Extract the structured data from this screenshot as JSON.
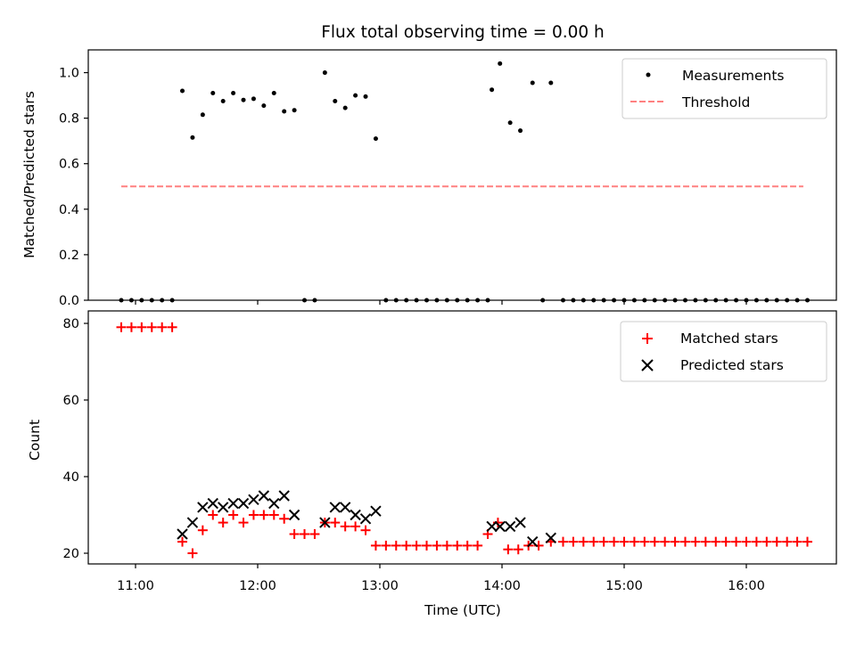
{
  "chart_data": [
    {
      "type": "scatter",
      "title": "Flux total observing time = 0.00 h",
      "xlabel": "",
      "ylabel": "Matched/Predicted stars",
      "xlim": [
        "10:35",
        "16:42"
      ],
      "ylim": [
        0,
        1.1
      ],
      "yticks": [
        0.0,
        0.2,
        0.4,
        0.6,
        0.8,
        1.0
      ],
      "ytick_labels": [
        "0.0",
        "0.2",
        "0.4",
        "0.6",
        "0.8",
        "1.0"
      ],
      "legend_position": "upper right",
      "grid": false,
      "series": [
        {
          "name": "Measurements",
          "marker": "dot",
          "color": "#000000",
          "points": [
            [
              "10:53",
              0
            ],
            [
              "10:58",
              0
            ],
            [
              "11:03",
              0
            ],
            [
              "11:08",
              0
            ],
            [
              "11:13",
              0
            ],
            [
              "11:18",
              0
            ],
            [
              "11:23",
              0.92
            ],
            [
              "11:28",
              0.715
            ],
            [
              "11:33",
              0.815
            ],
            [
              "11:38",
              0.91
            ],
            [
              "11:43",
              0.875
            ],
            [
              "11:48",
              0.91
            ],
            [
              "11:53",
              0.88
            ],
            [
              "11:58",
              0.885
            ],
            [
              "12:03",
              0.855
            ],
            [
              "12:08",
              0.91
            ],
            [
              "12:13",
              0.83
            ],
            [
              "12:18",
              0.835
            ],
            [
              "12:23",
              0
            ],
            [
              "12:28",
              0
            ],
            [
              "12:33",
              1.0
            ],
            [
              "12:38",
              0.875
            ],
            [
              "12:43",
              0.845
            ],
            [
              "12:48",
              0.9
            ],
            [
              "12:53",
              0.895
            ],
            [
              "12:58",
              0.71
            ],
            [
              "13:03",
              0
            ],
            [
              "13:08",
              0
            ],
            [
              "13:13",
              0
            ],
            [
              "13:18",
              0
            ],
            [
              "13:23",
              0
            ],
            [
              "13:28",
              0
            ],
            [
              "13:33",
              0
            ],
            [
              "13:38",
              0
            ],
            [
              "13:43",
              0
            ],
            [
              "13:48",
              0
            ],
            [
              "13:53",
              0
            ],
            [
              "13:55",
              0.925
            ],
            [
              "13:59",
              1.04
            ],
            [
              "14:04",
              0.78
            ],
            [
              "14:09",
              0.745
            ],
            [
              "14:15",
              0.955
            ],
            [
              "14:20",
              0
            ],
            [
              "14:24",
              0.955
            ],
            [
              "14:30",
              0
            ],
            [
              "14:35",
              0
            ],
            [
              "14:40",
              0
            ],
            [
              "14:45",
              0
            ],
            [
              "14:50",
              0
            ],
            [
              "14:55",
              0
            ],
            [
              "15:00",
              0
            ],
            [
              "15:05",
              0
            ],
            [
              "15:10",
              0
            ],
            [
              "15:15",
              0
            ],
            [
              "15:20",
              0
            ],
            [
              "15:25",
              0
            ],
            [
              "15:30",
              0
            ],
            [
              "15:35",
              0
            ],
            [
              "15:40",
              0
            ],
            [
              "15:45",
              0
            ],
            [
              "15:50",
              0
            ],
            [
              "15:55",
              0
            ],
            [
              "16:00",
              0
            ],
            [
              "16:05",
              0
            ],
            [
              "16:10",
              0
            ],
            [
              "16:15",
              0
            ],
            [
              "16:20",
              0
            ],
            [
              "16:25",
              0
            ],
            [
              "16:30",
              0
            ]
          ]
        },
        {
          "name": "Threshold",
          "style": "dashed-line",
          "color": "#ff8080",
          "points": [
            [
              "10:53",
              0.5
            ],
            [
              "16:28",
              0.5
            ]
          ]
        }
      ]
    },
    {
      "type": "scatter",
      "title": "",
      "xlabel": "Time (UTC)",
      "ylabel": "Count",
      "xlim": [
        "10:35",
        "16:42"
      ],
      "ylim": [
        16.5,
        82.5
      ],
      "yticks": [
        20,
        40,
        60,
        80
      ],
      "ytick_labels": [
        "20",
        "40",
        "60",
        "80"
      ],
      "xticks": [
        "11:00",
        "12:00",
        "13:00",
        "14:00",
        "15:00",
        "16:00"
      ],
      "xtick_labels": [
        "11:00",
        "12:00",
        "13:00",
        "14:00",
        "15:00",
        "16:00"
      ],
      "legend_position": "upper right",
      "grid": false,
      "series": [
        {
          "name": "Matched stars",
          "marker": "plus",
          "color": "#ff0000",
          "points": [
            [
              "10:53",
              79
            ],
            [
              "10:58",
              79
            ],
            [
              "11:03",
              79
            ],
            [
              "11:08",
              79
            ],
            [
              "11:13",
              79
            ],
            [
              "11:18",
              79
            ],
            [
              "11:23",
              23
            ],
            [
              "11:28",
              20
            ],
            [
              "11:33",
              26
            ],
            [
              "11:38",
              30
            ],
            [
              "11:43",
              28
            ],
            [
              "11:48",
              30
            ],
            [
              "11:53",
              28
            ],
            [
              "11:58",
              30
            ],
            [
              "12:03",
              30
            ],
            [
              "12:08",
              30
            ],
            [
              "12:13",
              29
            ],
            [
              "12:18",
              25
            ],
            [
              "12:23",
              25
            ],
            [
              "12:28",
              25
            ],
            [
              "12:33",
              28
            ],
            [
              "12:38",
              28
            ],
            [
              "12:43",
              27
            ],
            [
              "12:48",
              27
            ],
            [
              "12:53",
              26
            ],
            [
              "12:58",
              22
            ],
            [
              "13:03",
              22
            ],
            [
              "13:08",
              22
            ],
            [
              "13:13",
              22
            ],
            [
              "13:18",
              22
            ],
            [
              "13:23",
              22
            ],
            [
              "13:28",
              22
            ],
            [
              "13:33",
              22
            ],
            [
              "13:38",
              22
            ],
            [
              "13:43",
              22
            ],
            [
              "13:48",
              22
            ],
            [
              "13:53",
              25
            ],
            [
              "13:58",
              28
            ],
            [
              "14:03",
              21
            ],
            [
              "14:08",
              21
            ],
            [
              "14:13",
              22
            ],
            [
              "14:18",
              22
            ],
            [
              "14:24",
              23
            ],
            [
              "14:30",
              23
            ],
            [
              "14:35",
              23
            ],
            [
              "14:40",
              23
            ],
            [
              "14:45",
              23
            ],
            [
              "14:50",
              23
            ],
            [
              "14:55",
              23
            ],
            [
              "15:00",
              23
            ],
            [
              "15:05",
              23
            ],
            [
              "15:10",
              23
            ],
            [
              "15:15",
              23
            ],
            [
              "15:20",
              23
            ],
            [
              "15:25",
              23
            ],
            [
              "15:30",
              23
            ],
            [
              "15:35",
              23
            ],
            [
              "15:40",
              23
            ],
            [
              "15:45",
              23
            ],
            [
              "15:50",
              23
            ],
            [
              "15:55",
              23
            ],
            [
              "16:00",
              23
            ],
            [
              "16:05",
              23
            ],
            [
              "16:10",
              23
            ],
            [
              "16:15",
              23
            ],
            [
              "16:20",
              23
            ],
            [
              "16:25",
              23
            ],
            [
              "16:30",
              23
            ]
          ]
        },
        {
          "name": "Predicted stars",
          "marker": "x",
          "color": "#000000",
          "points": [
            [
              "11:23",
              25
            ],
            [
              "11:28",
              28
            ],
            [
              "11:33",
              32
            ],
            [
              "11:38",
              33
            ],
            [
              "11:43",
              32
            ],
            [
              "11:48",
              33
            ],
            [
              "11:53",
              33
            ],
            [
              "11:58",
              34
            ],
            [
              "12:03",
              35
            ],
            [
              "12:08",
              33
            ],
            [
              "12:13",
              35
            ],
            [
              "12:18",
              30
            ],
            [
              "12:33",
              28
            ],
            [
              "12:38",
              32
            ],
            [
              "12:43",
              32
            ],
            [
              "12:48",
              30
            ],
            [
              "12:53",
              29
            ],
            [
              "12:58",
              31
            ],
            [
              "13:55",
              27
            ],
            [
              "13:59",
              27
            ],
            [
              "14:04",
              27
            ],
            [
              "14:09",
              28
            ],
            [
              "14:15",
              23
            ],
            [
              "14:24",
              24
            ]
          ]
        }
      ]
    }
  ]
}
